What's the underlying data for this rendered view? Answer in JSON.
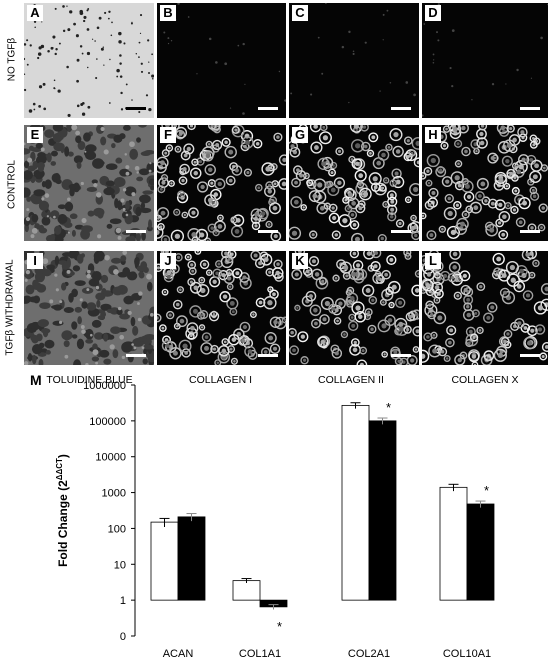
{
  "figure": {
    "row_labels": [
      "NO TGFβ",
      "CONTROL",
      "TGFβ WITHDRAWAL"
    ],
    "column_labels": [
      "TOLUIDINE BLUE",
      "COLLAGEN I",
      "COLLAGEN II",
      "COLLAGEN X"
    ],
    "panels": [
      {
        "letter": "A",
        "style": "light-sparse"
      },
      {
        "letter": "B",
        "style": "dark-empty"
      },
      {
        "letter": "C",
        "style": "dark-empty"
      },
      {
        "letter": "D",
        "style": "dark-empty"
      },
      {
        "letter": "E",
        "style": "gray-tissue"
      },
      {
        "letter": "F",
        "style": "dark-cells"
      },
      {
        "letter": "G",
        "style": "dark-cells"
      },
      {
        "letter": "H",
        "style": "dark-cells"
      },
      {
        "letter": "I",
        "style": "gray-tissue"
      },
      {
        "letter": "J",
        "style": "dark-cells"
      },
      {
        "letter": "K",
        "style": "dark-cells"
      },
      {
        "letter": "L",
        "style": "dark-cells"
      }
    ]
  },
  "chart_letter": "M",
  "chart_data": {
    "type": "bar",
    "yscale": "log",
    "ylim": [
      0,
      1000000
    ],
    "ylabel": "Fold Change (2",
    "ylabel_superscript": "ΔΔCT",
    "ylabel_close": ")",
    "yticks": [
      "0",
      "1",
      "10",
      "100",
      "1000",
      "10000",
      "100000",
      "1000000"
    ],
    "categories": [
      "ACAN",
      "COL1A1",
      "COL2A1",
      "COL10A1"
    ],
    "series": [
      {
        "fill": "#ffffff",
        "values": [
          150,
          3.5,
          270000,
          1400
        ],
        "errors": [
          40,
          0.5,
          50000,
          300
        ]
      },
      {
        "fill": "#000000",
        "values": [
          210,
          0.65,
          100000,
          480
        ],
        "errors": [
          50,
          0.1,
          20000,
          100
        ]
      }
    ],
    "significance": [
      {
        "category": "COL1A1",
        "series": 1,
        "label": "*",
        "position": "below"
      },
      {
        "category": "COL2A1",
        "series": 1,
        "label": "*",
        "position": "above"
      },
      {
        "category": "COL10A1",
        "series": 1,
        "label": "*",
        "position": "above"
      }
    ]
  }
}
